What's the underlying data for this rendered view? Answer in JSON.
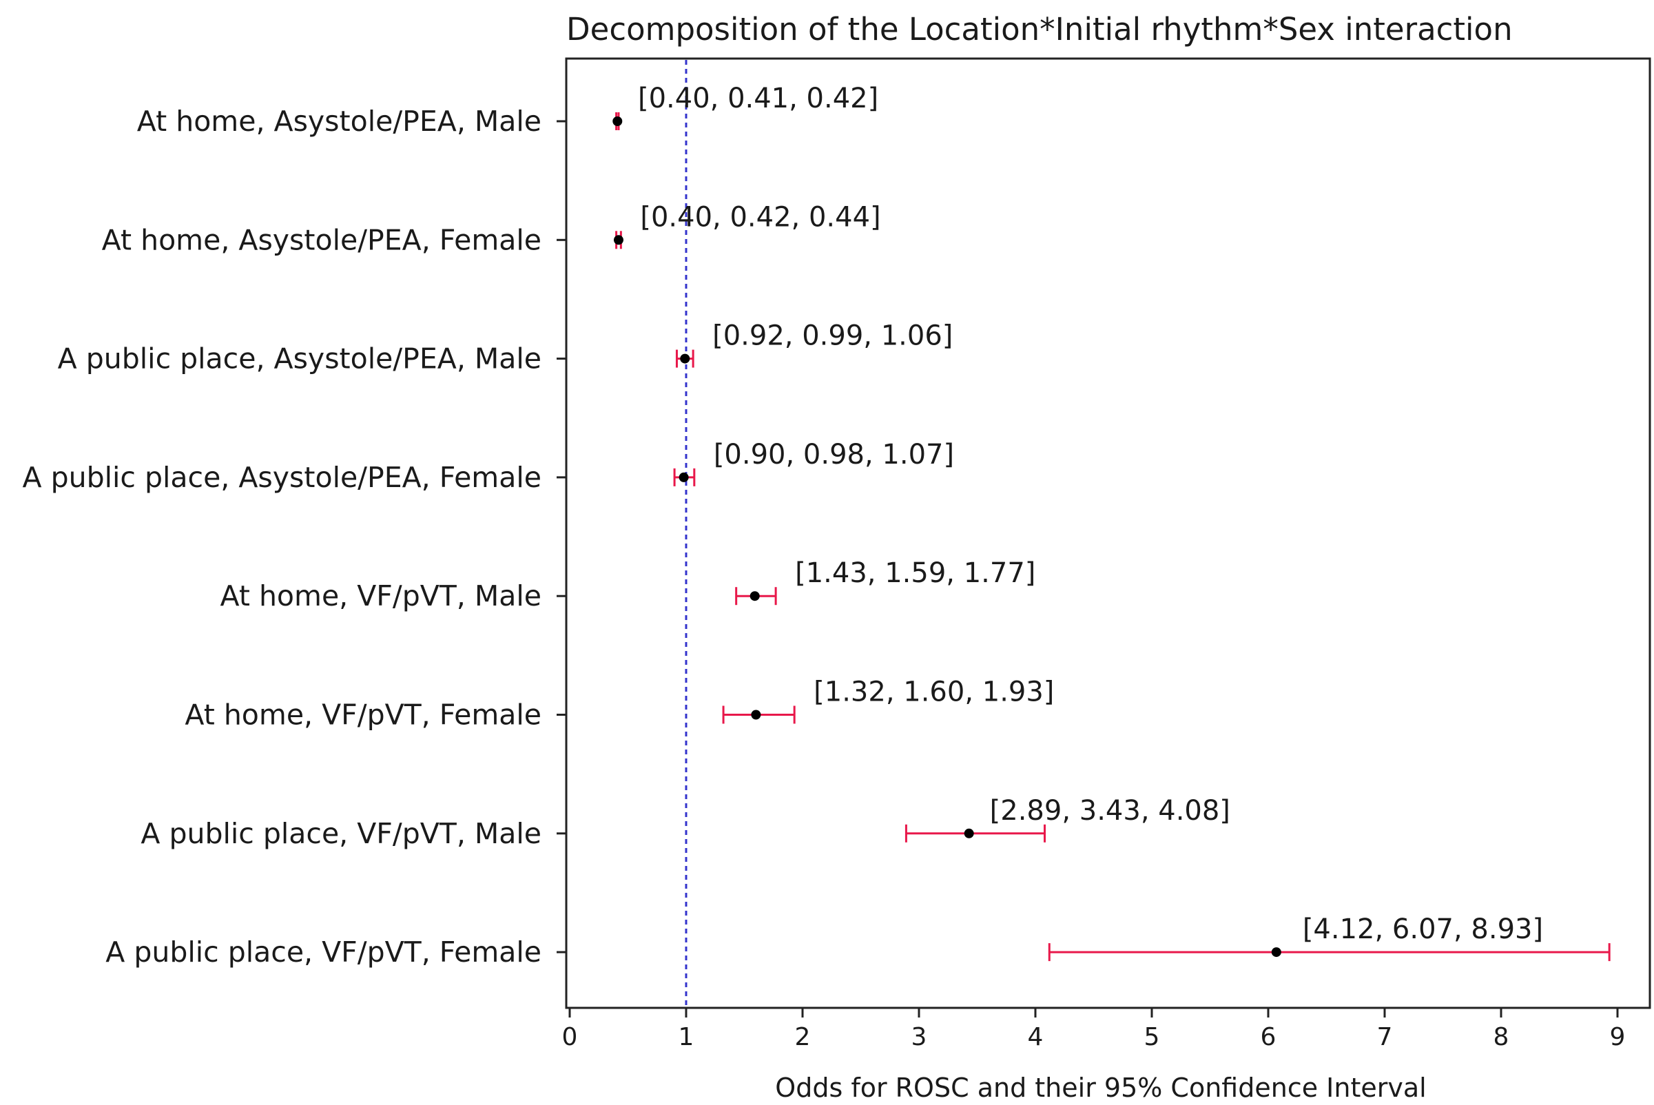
{
  "chart_data": {
    "type": "scatter",
    "subtype": "forest-plot",
    "title": "Decomposition of the Location*Initial rhythm*Sex interaction",
    "xlabel": "Odds for ROSC and their 95% Confidence Interval",
    "ylabel": "",
    "xlim": [
      0,
      9.35
    ],
    "xticks": [
      0,
      1,
      2,
      3,
      4,
      5,
      6,
      7,
      8,
      9
    ],
    "xtick_labels": [
      "0",
      "1",
      "2",
      "3",
      "4",
      "5",
      "6",
      "7",
      "8",
      "9"
    ],
    "reference_line": {
      "x": 1,
      "style": "dashed",
      "color": "#3333cc"
    },
    "grid": false,
    "legend": "none",
    "colors": {
      "errorbar": "#e8184a",
      "point": "#000000",
      "frame": "#222222"
    },
    "categories": [
      "At home, Asystole/PEA, Male",
      "At home, Asystole/PEA, Female",
      "A public place, Asystole/PEA, Male",
      "A public place, Asystole/PEA, Female",
      "At home, VF/pVT, Male",
      "At home, VF/pVT, Female",
      "A public place, VF/pVT, Male",
      "A public place, VF/pVT, Female"
    ],
    "points": [
      {
        "lower": 0.4,
        "value": 0.41,
        "upper": 0.42,
        "label": "[0.40, 0.41, 0.42]"
      },
      {
        "lower": 0.4,
        "value": 0.42,
        "upper": 0.44,
        "label": "[0.40, 0.42, 0.44]"
      },
      {
        "lower": 0.92,
        "value": 0.99,
        "upper": 1.06,
        "label": "[0.92, 0.99, 1.06]"
      },
      {
        "lower": 0.9,
        "value": 0.98,
        "upper": 1.07,
        "label": "[0.90, 0.98, 1.07]"
      },
      {
        "lower": 1.43,
        "value": 1.59,
        "upper": 1.77,
        "label": "[1.43, 1.59, 1.77]"
      },
      {
        "lower": 1.32,
        "value": 1.6,
        "upper": 1.93,
        "label": "[1.32, 1.60, 1.93]"
      },
      {
        "lower": 2.89,
        "value": 3.43,
        "upper": 4.08,
        "label": "[2.89, 3.43, 4.08]"
      },
      {
        "lower": 4.12,
        "value": 6.07,
        "upper": 8.93,
        "label": "[4.12, 6.07, 8.93]"
      }
    ]
  }
}
